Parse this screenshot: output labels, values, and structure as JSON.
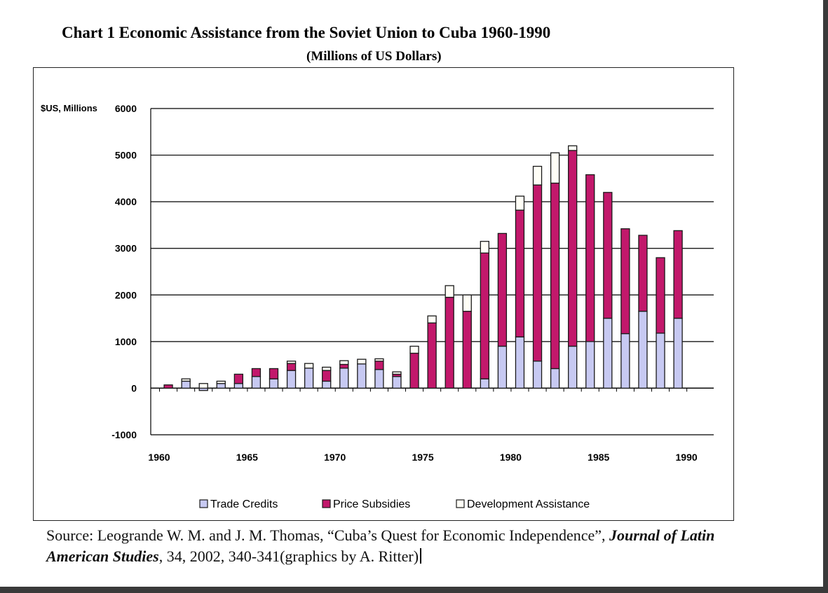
{
  "title": "Chart 1 Economic Assistance from the Soviet Union to Cuba 1960-1990",
  "subtitle": "(Millions of US Dollars)",
  "source": {
    "prefix": "Source: ",
    "authors": "Leogrande W. M. and J. M. Thomas, “Cuba’s Quest for Economic Independence”,",
    "journal": "Journal of Latin American Studies",
    "suffix": ", 34, 2002, 340-341(graphics by A. Ritter)"
  },
  "colors": {
    "trade": "#c7c9f2",
    "price": "#c2186b",
    "dev": "#fffef6",
    "outline": "#1a1a1a",
    "grid": "#000000"
  },
  "chart_data": {
    "type": "bar",
    "stacked": true,
    "title": "Chart 1 Economic Assistance from the Soviet Union to Cuba 1960-1990",
    "ylabel": "$US, Millions",
    "xlabel": "",
    "ylim": [
      -1000,
      6000
    ],
    "yticks": [
      -1000,
      0,
      1000,
      2000,
      3000,
      4000,
      5000,
      6000
    ],
    "xtick_labels": [
      "1960",
      "1965",
      "1970",
      "1975",
      "1980",
      "1985",
      "1990"
    ],
    "categories": [
      "1960",
      "1961",
      "1962",
      "1963",
      "1964",
      "1965",
      "1966",
      "1967",
      "1968",
      "1969",
      "1970",
      "1971",
      "1972",
      "1973",
      "1974",
      "1975",
      "1976",
      "1977",
      "1978",
      "1979",
      "1980",
      "1981",
      "1982",
      "1983",
      "1984",
      "1985",
      "1986",
      "1987",
      "1988",
      "1989",
      "1990"
    ],
    "series": [
      {
        "name": "Trade Credits",
        "values": [
          0,
          0,
          150,
          -50,
          100,
          100,
          250,
          200,
          380,
          430,
          150,
          430,
          520,
          400,
          250,
          0,
          0,
          0,
          0,
          200,
          900,
          1100,
          580,
          420,
          900,
          1000,
          1500,
          1170,
          1650,
          1180,
          1500
        ]
      },
      {
        "name": "Price Subsidies",
        "values": [
          0,
          70,
          0,
          0,
          0,
          200,
          170,
          220,
          150,
          0,
          230,
          80,
          0,
          180,
          50,
          750,
          1400,
          1950,
          1650,
          2700,
          2420,
          2720,
          3780,
          3980,
          4200,
          3580,
          2700,
          2250,
          1630,
          1620,
          1880
        ]
      },
      {
        "name": "Development Assistance",
        "values": [
          0,
          0,
          50,
          100,
          50,
          0,
          0,
          0,
          50,
          100,
          70,
          80,
          100,
          50,
          50,
          150,
          150,
          250,
          350,
          250,
          0,
          300,
          400,
          650,
          100,
          0,
          0,
          0,
          0,
          0,
          0
        ]
      }
    ],
    "legend": [
      "Trade Credits",
      "Price Subsidies",
      "Development Assistance"
    ],
    "legend_position": "bottom",
    "grid": true
  }
}
